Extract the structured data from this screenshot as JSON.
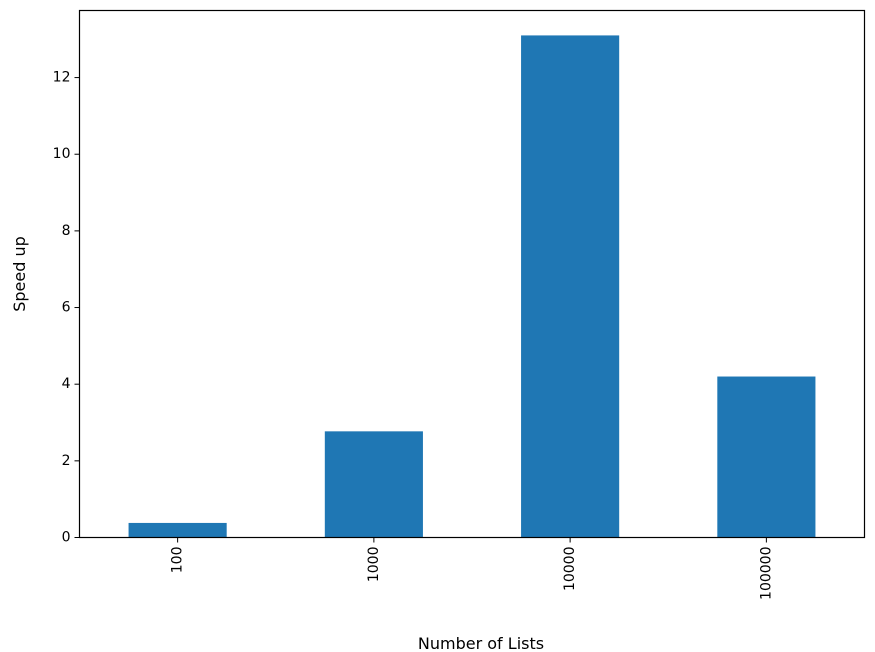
{
  "chart_data": {
    "type": "bar",
    "categories": [
      "100",
      "1000",
      "10000",
      "100000"
    ],
    "values": [
      0.38,
      2.77,
      13.1,
      4.2
    ],
    "title": "",
    "xlabel": "Number of Lists",
    "ylabel": "Speed up",
    "ylim": [
      0,
      13.75
    ],
    "yticks": [
      0,
      2,
      4,
      6,
      8,
      10,
      12
    ],
    "grid": false,
    "legend": "none",
    "bar_color": "#1f77b4",
    "xtick_rotation": "vertical"
  }
}
